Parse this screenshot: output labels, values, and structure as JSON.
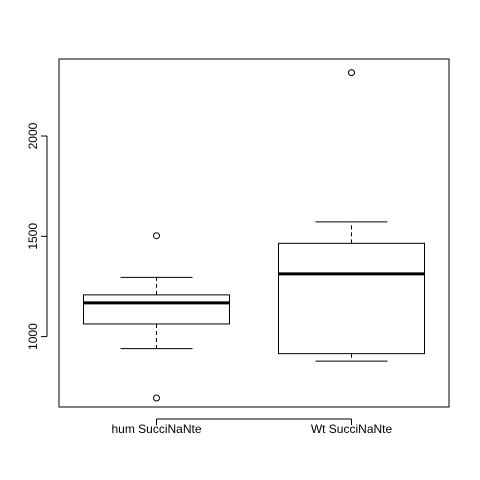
{
  "chart_data": {
    "type": "boxplot",
    "title": "",
    "xlabel": "",
    "ylabel": "",
    "ylim": [
      649,
      2384
    ],
    "yticks": [
      1000,
      1500,
      2000
    ],
    "ytick_labels": [
      "1000",
      "1500",
      "2000"
    ],
    "grid": false,
    "legend": "none",
    "categories": [
      "hum SucciNaNte",
      "Wt SucciNaNte"
    ],
    "boxes": [
      {
        "whisker_low": 940,
        "q1": 1063,
        "median": 1168,
        "q3": 1208,
        "whisker_high": 1295,
        "outliers": [
          1503,
          694
        ]
      },
      {
        "whisker_low": 878,
        "q1": 915,
        "median": 1313,
        "q3": 1465,
        "whisker_high": 1572,
        "outliers": [
          2316
        ]
      }
    ],
    "colors": {
      "box_fill": "#ffffff",
      "line": "#000000"
    }
  }
}
